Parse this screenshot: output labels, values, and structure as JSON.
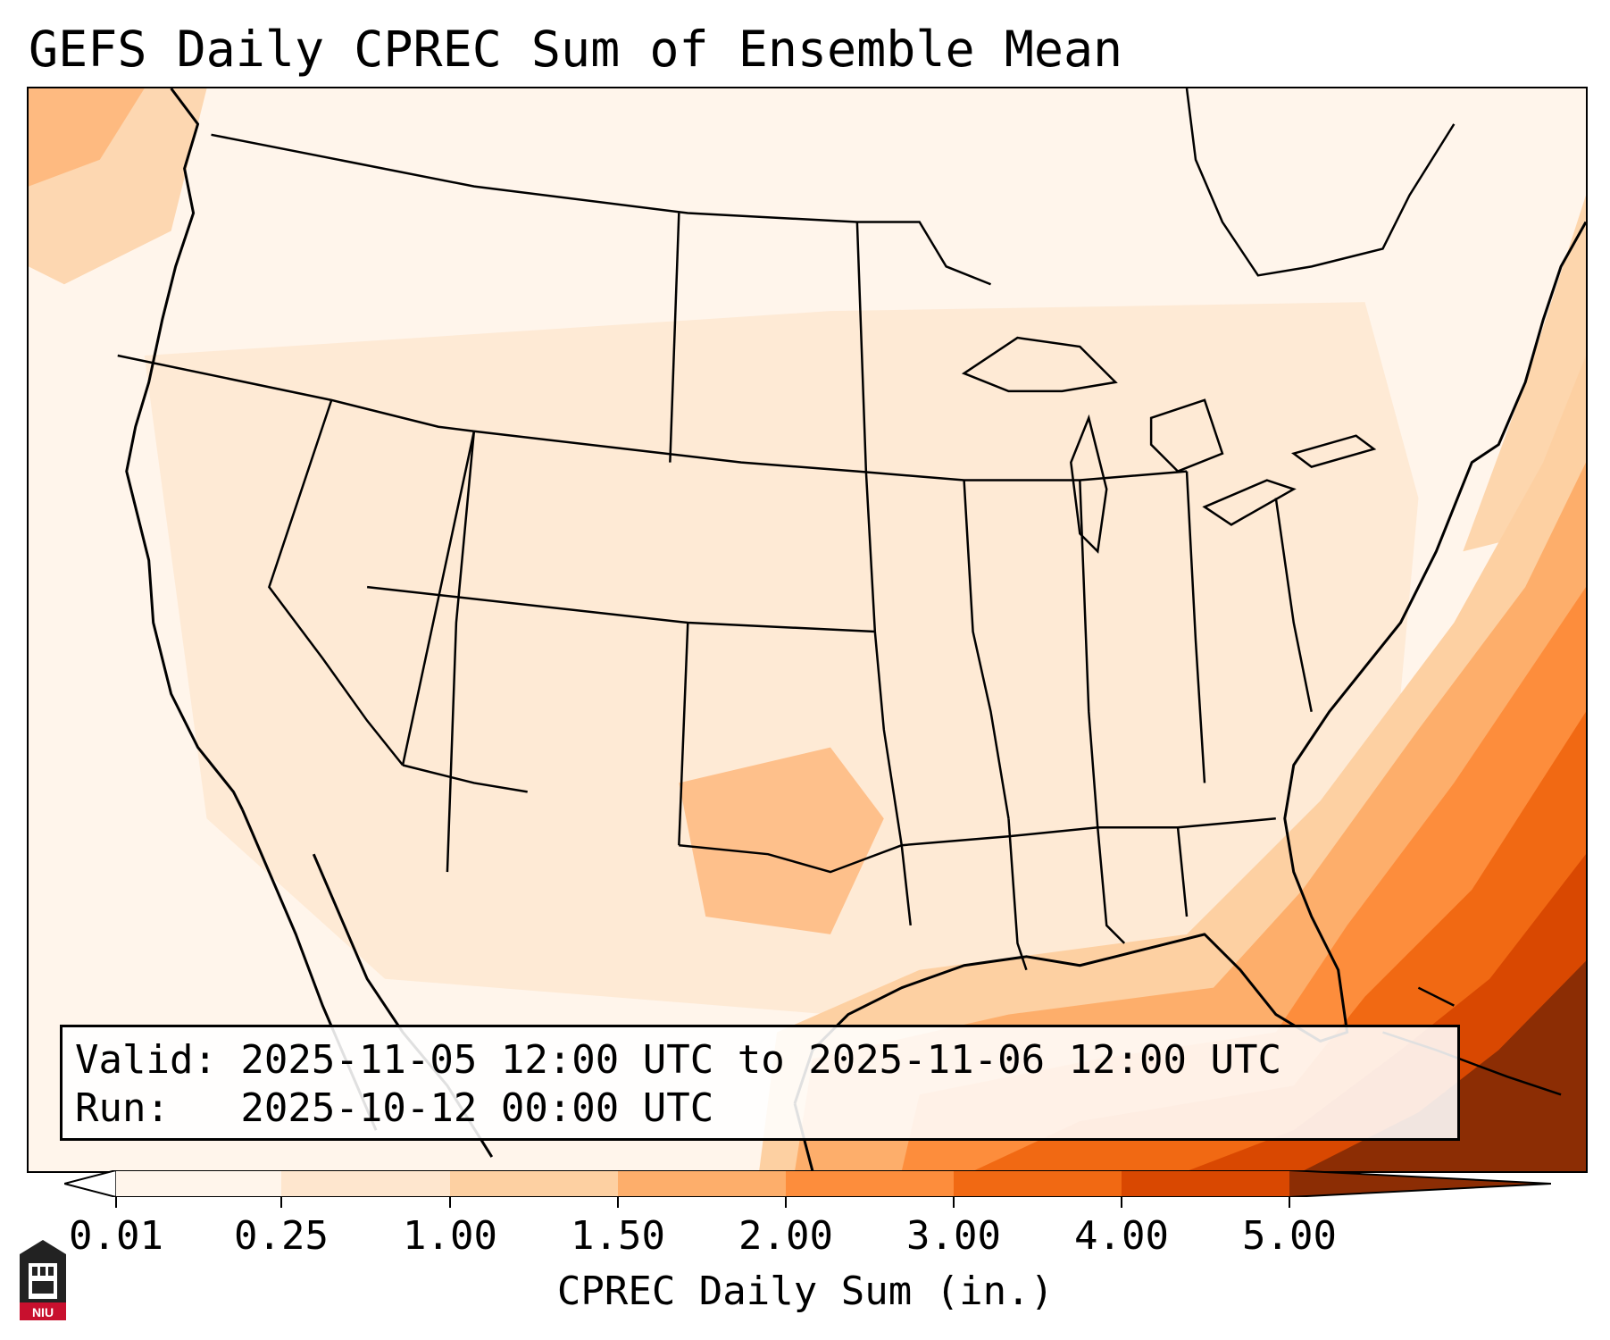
{
  "title": "GEFS Daily CPREC Sum of Ensemble Mean",
  "info": {
    "valid": "Valid: 2025-11-05 12:00 UTC to 2025-11-06 12:00 UTC",
    "run": "Run:   2025-10-12 00:00 UTC"
  },
  "colorbar": {
    "label": "CPREC Daily Sum (in.)",
    "ticks": [
      "0.01",
      "0.25",
      "1.00",
      "1.50",
      "2.00",
      "3.00",
      "4.00",
      "5.00"
    ],
    "colors": [
      "#fff5eb",
      "#fee6ce",
      "#fdd0a2",
      "#fdae6b",
      "#fd8d3c",
      "#f16913",
      "#d94801",
      "#8c2d04"
    ]
  },
  "logo": {
    "text": "NIU",
    "icon": "niu-logo-icon"
  }
}
